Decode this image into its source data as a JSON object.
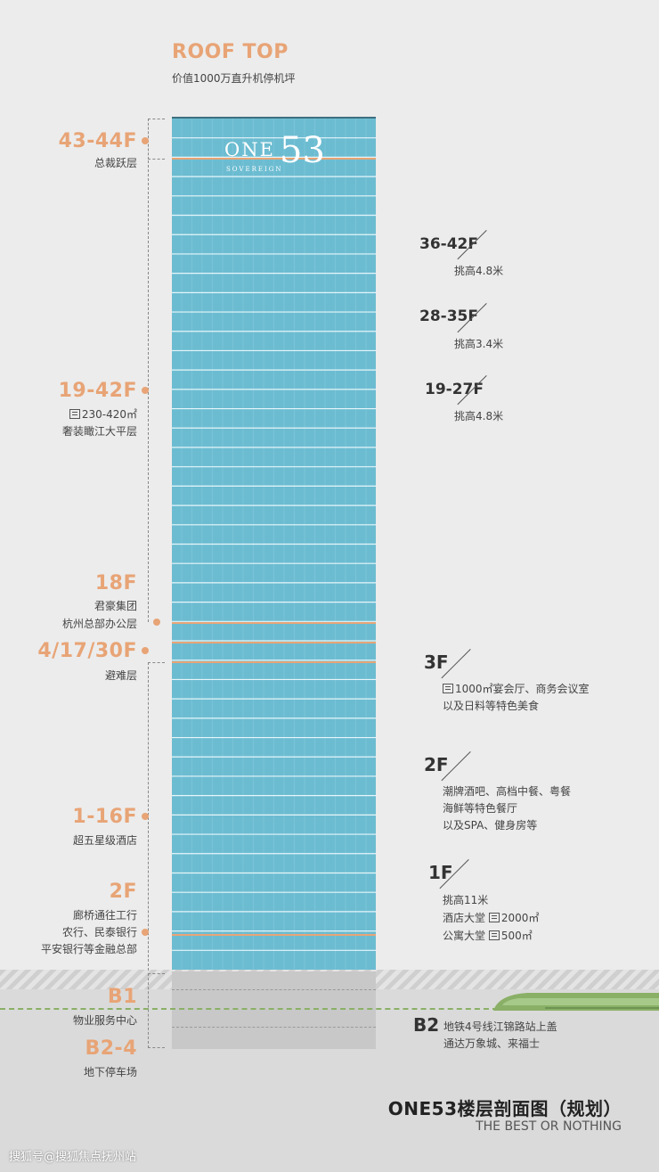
{
  "roof": {
    "title": "ROOF TOP",
    "subtitle": "价值1000万直升机停机坪"
  },
  "left_labels": [
    {
      "floor": "43-44F",
      "lines": [
        "总裁跃层"
      ]
    },
    {
      "floor": "19-42F",
      "area": "230-420㎡",
      "lines": [
        "奢装瞰江大平层"
      ]
    },
    {
      "floor": "18F",
      "lines": [
        "君豪集团",
        "杭州总部办公层"
      ]
    },
    {
      "floor": "4/17/30F",
      "lines": [
        "避难层"
      ]
    },
    {
      "floor": "1-16F",
      "lines": [
        "超五星级酒店"
      ]
    },
    {
      "floor": "2F",
      "lines": [
        "廊桥通往工行",
        "农行、民泰银行",
        "平安银行等金融总部"
      ]
    },
    {
      "floor": "B1",
      "lines": [
        "物业服务中心"
      ]
    },
    {
      "floor": "B2-4",
      "lines": [
        "地下停车场"
      ]
    }
  ],
  "right_labels": [
    {
      "floor": "36-42F",
      "lines": [
        "挑高4.8米"
      ]
    },
    {
      "floor": "28-35F",
      "lines": [
        "挑高3.4米"
      ]
    },
    {
      "floor": "19-27F",
      "lines": [
        "挑高4.8米"
      ]
    },
    {
      "floor": "3F",
      "area": "1000㎡宴会厅、商务会议室",
      "lines": [
        "以及日料等特色美食"
      ]
    },
    {
      "floor": "2F",
      "lines": [
        "潮牌酒吧、高档中餐、粤餐",
        "海鲜等特色餐厅",
        "以及SPA、健身房等"
      ]
    },
    {
      "floor": "1F",
      "lines": [
        "挑高11米"
      ],
      "lobby1": "酒店大堂",
      "lobby1_area": "2000㎡",
      "lobby2": "公寓大堂",
      "lobby2_area": "500㎡"
    },
    {
      "floor": "B2",
      "lines": [
        "地铁4号线江锦路站上盖",
        "通达万象城、来福士"
      ]
    }
  ],
  "logo": {
    "text": "ONE",
    "numeral": "53",
    "sub": "SOVEREIGN"
  },
  "footer": {
    "title": "ONE53楼层剖面图（规划）",
    "tagline": "THE BEST OR NOTHING"
  },
  "watermark": "搜狐号@搜狐焦点抚州站",
  "colors": {
    "tower": "#6cbcd1",
    "accent": "#e8a476",
    "metro": "#8ab067"
  }
}
